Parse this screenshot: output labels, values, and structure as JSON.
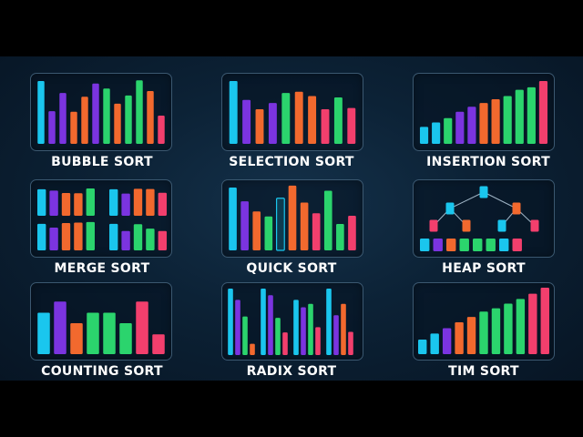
{
  "colors": {
    "cyan": "#1ac6ee",
    "purple": "#7b34e0",
    "orange": "#f2692e",
    "green": "#2bd46d",
    "pink": "#f23f6d",
    "frame": "#3b5870",
    "background": "#0c2236"
  },
  "algorithms": [
    {
      "key": "bubble",
      "label": "BUBBLE SORT"
    },
    {
      "key": "selection",
      "label": "SELECTION SORT"
    },
    {
      "key": "insertion",
      "label": "INSERTION SORT"
    },
    {
      "key": "merge",
      "label": "MERGE SORT"
    },
    {
      "key": "quick",
      "label": "QUICK SORT"
    },
    {
      "key": "heap",
      "label": "HEAP SORT"
    },
    {
      "key": "counting",
      "label": "COUNTING SORT"
    },
    {
      "key": "radix",
      "label": "RADIX SORT"
    },
    {
      "key": "tim",
      "label": "TIM SORT"
    }
  ],
  "bars": {
    "bubble": {
      "values": [
        10,
        5.2,
        8.1,
        5.1,
        7.5,
        9.6,
        8.8,
        6.4,
        7.7,
        10.1,
        8.4,
        4.5
      ],
      "colors": [
        "cyan",
        "purple",
        "purple",
        "orange",
        "orange",
        "purple",
        "green",
        "orange",
        "green",
        "green",
        "orange",
        "pink"
      ]
    },
    "selection": {
      "values": [
        10,
        7,
        5.5,
        6.5,
        8.1,
        8.3,
        7.6,
        5.5,
        7.4,
        5.7
      ],
      "colors": [
        "cyan",
        "purple",
        "orange",
        "purple",
        "green",
        "orange",
        "orange",
        "pink",
        "green",
        "pink"
      ]
    },
    "insertion": {
      "values": [
        2.7,
        3.4,
        4.1,
        5.1,
        5.9,
        6.5,
        7.1,
        7.6,
        8.6,
        9,
        10
      ],
      "colors": [
        "cyan",
        "cyan",
        "green",
        "purple",
        "purple",
        "orange",
        "orange",
        "green",
        "green",
        "green",
        "pink"
      ]
    },
    "quick": {
      "values": [
        10,
        7.8,
        6.2,
        5.4,
        8.3,
        10.3,
        7.6,
        5.9,
        9.5,
        4.2,
        5.5
      ],
      "colors": [
        "cyan",
        "purple",
        "orange",
        "green",
        "cyan",
        "orange",
        "orange",
        "pink",
        "green",
        "green",
        "pink"
      ],
      "highlight_index": 4
    },
    "counting": {
      "values": [
        6.7,
        8.5,
        5.0,
        6.7,
        6.7,
        5.0,
        8.5,
        3.2
      ],
      "colors": [
        "cyan",
        "purple",
        "orange",
        "green",
        "green",
        "green",
        "pink",
        "pink"
      ]
    },
    "tim": {
      "values": [
        2.2,
        3.1,
        3.9,
        4.8,
        5.6,
        6.4,
        6.9,
        7.6,
        8.3,
        9.1,
        10
      ],
      "colors": [
        "cyan",
        "cyan",
        "purple",
        "orange",
        "orange",
        "green",
        "green",
        "green",
        "green",
        "pink",
        "pink"
      ]
    }
  },
  "merge_groups": [
    {
      "values": [
        10,
        9.5,
        8.6,
        8.5,
        10.3
      ],
      "colors": [
        "cyan",
        "purple",
        "orange",
        "orange",
        "green"
      ]
    },
    {
      "values": [
        10,
        8.4,
        10.2,
        10.1,
        8.7
      ],
      "colors": [
        "cyan",
        "purple",
        "orange",
        "orange",
        "pink"
      ]
    },
    {
      "values": [
        10,
        8.6,
        10.3,
        10.5,
        10.7
      ],
      "colors": [
        "cyan",
        "purple",
        "orange",
        "orange",
        "green"
      ]
    },
    {
      "values": [
        10,
        7.3,
        9.9,
        8.2,
        7.3
      ],
      "colors": [
        "cyan",
        "purple",
        "green",
        "green",
        "pink"
      ]
    }
  ],
  "radix_groups": [
    {
      "values": [
        10,
        8.3,
        5.8,
        1.7
      ],
      "colors": [
        "cyan",
        "purple",
        "green",
        "orange"
      ]
    },
    {
      "values": [
        10,
        9.0,
        5.6,
        3.4
      ],
      "colors": [
        "cyan",
        "purple",
        "green",
        "pink"
      ]
    },
    {
      "values": [
        8.3,
        7.2,
        7.7,
        4.2
      ],
      "colors": [
        "cyan",
        "purple",
        "green",
        "pink"
      ]
    },
    {
      "values": [
        10,
        6.0,
        7.7,
        3.5
      ],
      "colors": [
        "cyan",
        "purple",
        "orange",
        "pink"
      ]
    }
  ],
  "heap": {
    "nodes": [
      {
        "color": "cyan"
      },
      {
        "color": "cyan"
      },
      {
        "color": "orange"
      },
      {
        "color": "pink"
      },
      {
        "color": "orange"
      },
      {
        "color": "cyan"
      },
      {
        "color": "pink"
      }
    ],
    "array": [
      "cyan",
      "purple",
      "orange",
      "green",
      "green",
      "green",
      "cyan",
      "pink"
    ]
  }
}
